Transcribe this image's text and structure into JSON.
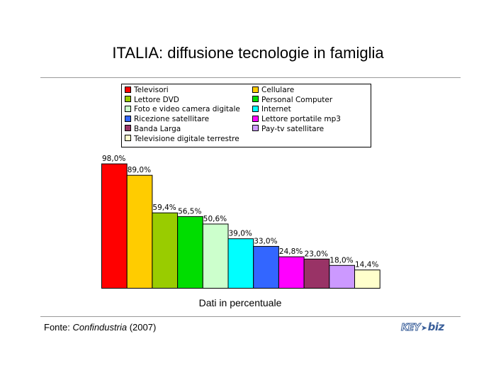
{
  "title": "ITALIA: diffusione tecnologie in famiglia",
  "source": {
    "prefix": "Fonte: ",
    "name": "Confindustria",
    "year": " (2007)"
  },
  "logo": {
    "part1": "KEY",
    "part2": "biz"
  },
  "chart_data": {
    "type": "bar",
    "xlabel": "Dati in percentuale",
    "ylabel": "",
    "ylim": [
      0,
      100
    ],
    "grid": false,
    "legend_position": "top",
    "categories": [
      "Televisori",
      "Cellulare",
      "Lettore DVD",
      "Personal Computer",
      "Foto e video camera digitale",
      "Internet",
      "Ricezione satellitare",
      "Lettore portatile mp3",
      "Banda Larga",
      "Pay-tv satellitare",
      "Televisione digitale terrestre"
    ],
    "values": [
      98.0,
      89.0,
      59.4,
      56.5,
      50.6,
      39.0,
      33.0,
      24.8,
      23.0,
      18.0,
      14.4
    ],
    "value_labels": [
      "98,0%",
      "89,0%",
      "59,4%",
      "56,5%",
      "50,6%",
      "39,0%",
      "33,0%",
      "24,8%",
      "23,0%",
      "18,0%",
      "14,4%"
    ],
    "colors": [
      "#ff0000",
      "#ffcc00",
      "#99cc00",
      "#00dd00",
      "#ccffcc",
      "#00ffff",
      "#3366ff",
      "#ff00ff",
      "#993366",
      "#cc99ff",
      "#ffffcc"
    ]
  }
}
